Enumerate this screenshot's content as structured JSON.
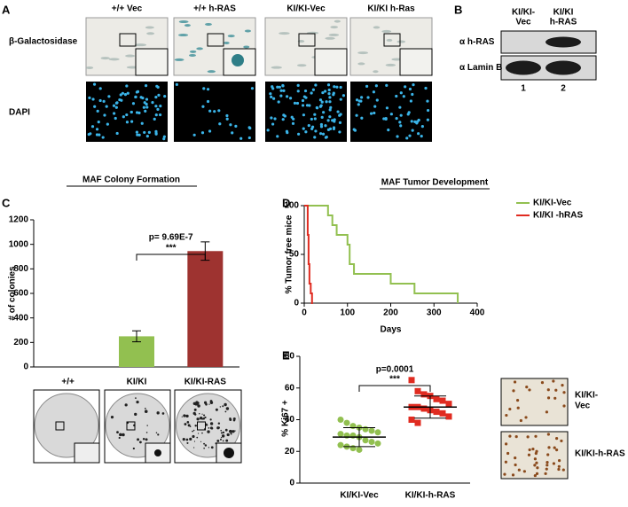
{
  "panel_labels": [
    "A",
    "B",
    "C",
    "D",
    "E"
  ],
  "panel_a": {
    "columns": [
      "+/+ Vec",
      "+/+ h-RAS",
      "KI/KI-Vec",
      "KI/KI h-Ras"
    ],
    "rows": [
      "β-Galactosidase",
      "DAPI"
    ]
  },
  "panel_b": {
    "lanes": [
      [
        "KI/KI-",
        "Vec"
      ],
      [
        "KI/KI",
        "h-RAS"
      ]
    ],
    "antibodies": [
      "α h-RAS",
      "α Lamin B"
    ],
    "lane_numbers": [
      "1",
      "2"
    ]
  },
  "panel_e_images": [
    [
      "KI/KI-",
      "Vec"
    ],
    [
      "KI/KI-h-RAS"
    ]
  ],
  "chart_data": [
    {
      "type": "bar",
      "title": "MAF Colony Formation",
      "ylabel": "# of colonies",
      "categories": [
        "+/+",
        "KI/KI",
        "KI/KI-RAS"
      ],
      "values": [
        0,
        250,
        945
      ],
      "errors": [
        null,
        45,
        75
      ],
      "colors": [
        "#92c050",
        "#92c050",
        "#9e3330"
      ],
      "ylim": [
        0,
        1200
      ],
      "yticks": [
        0,
        200,
        400,
        600,
        800,
        1000,
        1200
      ],
      "annotations": [
        "p= 9.69E-7",
        "***"
      ]
    },
    {
      "type": "line",
      "title": "MAF Tumor Development",
      "ylabel": "% Tumor free mice",
      "xlabel": "Days",
      "xlim": [
        0,
        400
      ],
      "xticks": [
        0,
        100,
        200,
        300,
        400
      ],
      "ylim": [
        0,
        100
      ],
      "yticks": [
        0,
        50,
        100
      ],
      "series": [
        {
          "name": "KI/KI-Vec",
          "color": "#92c050",
          "x": [
            0,
            55,
            55,
            65,
            65,
            75,
            75,
            100,
            100,
            105,
            105,
            115,
            115,
            200,
            200,
            255,
            255,
            355,
            355
          ],
          "values": [
            100,
            100,
            90,
            90,
            80,
            80,
            70,
            70,
            60,
            60,
            40,
            40,
            30,
            30,
            20,
            20,
            10,
            10,
            0
          ]
        },
        {
          "name": "KI/KI -hRAS",
          "color": "#e02b20",
          "x": [
            0,
            8,
            8,
            10,
            10,
            12,
            12,
            15,
            15,
            18,
            18,
            20
          ],
          "values": [
            100,
            100,
            70,
            70,
            40,
            40,
            20,
            20,
            10,
            10,
            0,
            0
          ]
        }
      ]
    },
    {
      "type": "scatter",
      "ylabel": "% Ki67 +",
      "ylim": [
        0,
        80
      ],
      "yticks": [
        0,
        20,
        40,
        60,
        80
      ],
      "annotations": [
        "p=0.0001",
        "***"
      ],
      "groups": [
        {
          "name": "KI/KI-Vec",
          "color": "#92c050",
          "mean": 29,
          "sd": 6,
          "values": [
            40,
            38,
            36,
            35,
            34,
            33,
            32,
            31,
            30,
            30,
            29,
            27,
            26,
            25,
            24,
            23,
            22,
            21
          ]
        },
        {
          "name": "KI/KI-h-RAS",
          "color": "#e02b20",
          "mean": 48,
          "sd": 7,
          "values": [
            65,
            58,
            56,
            55,
            53,
            52,
            50,
            48,
            48,
            47,
            46,
            45,
            44,
            42,
            40,
            38
          ]
        }
      ]
    }
  ]
}
